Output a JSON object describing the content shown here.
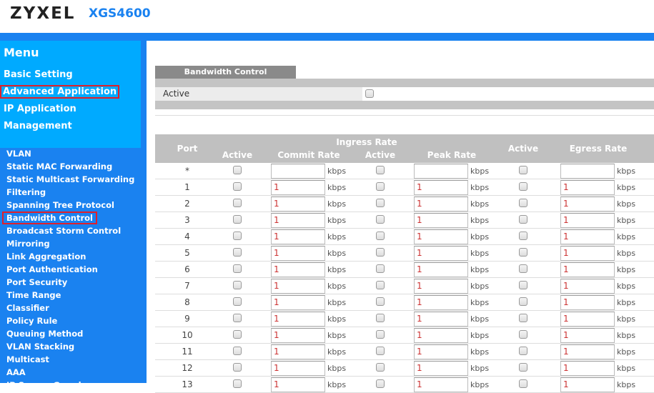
{
  "header": {
    "brand": "ZYXEL",
    "model": "XGS4600"
  },
  "menu": {
    "title": "Menu",
    "top_items": [
      {
        "label": "Basic Setting"
      },
      {
        "label": "Advanced Application",
        "selected": true
      },
      {
        "label": "IP Application"
      },
      {
        "label": "Management"
      }
    ],
    "sub_items": [
      {
        "label": "VLAN"
      },
      {
        "label": "Static MAC Forwarding"
      },
      {
        "label": "Static Multicast Forwarding"
      },
      {
        "label": "Filtering"
      },
      {
        "label": "Spanning Tree Protocol"
      },
      {
        "label": "Bandwidth Control",
        "selected": true
      },
      {
        "label": "Broadcast Storm Control"
      },
      {
        "label": "Mirroring"
      },
      {
        "label": "Link Aggregation"
      },
      {
        "label": "Port Authentication"
      },
      {
        "label": "Port Security"
      },
      {
        "label": "Time Range"
      },
      {
        "label": "Classifier"
      },
      {
        "label": "Policy Rule"
      },
      {
        "label": "Queuing Method"
      },
      {
        "label": "VLAN Stacking"
      },
      {
        "label": "Multicast"
      },
      {
        "label": "AAA"
      },
      {
        "label": "IP Source Guard"
      }
    ]
  },
  "main": {
    "tab": "Bandwidth Control",
    "active_label": "Active",
    "active_checked": false,
    "table": {
      "headers": {
        "port": "Port",
        "ingress": "Ingress Rate",
        "active1": "Active",
        "commit": "Commit Rate",
        "active2": "Active",
        "peak": "Peak Rate",
        "active3": "Active",
        "egress": "Egress Rate"
      },
      "unit": "kbps",
      "rows": [
        {
          "port": "*",
          "commit": "",
          "peak": "",
          "egress": ""
        },
        {
          "port": "1",
          "commit": "1",
          "peak": "1",
          "egress": "1"
        },
        {
          "port": "2",
          "commit": "1",
          "peak": "1",
          "egress": "1"
        },
        {
          "port": "3",
          "commit": "1",
          "peak": "1",
          "egress": "1"
        },
        {
          "port": "4",
          "commit": "1",
          "peak": "1",
          "egress": "1"
        },
        {
          "port": "5",
          "commit": "1",
          "peak": "1",
          "egress": "1"
        },
        {
          "port": "6",
          "commit": "1",
          "peak": "1",
          "egress": "1"
        },
        {
          "port": "7",
          "commit": "1",
          "peak": "1",
          "egress": "1"
        },
        {
          "port": "8",
          "commit": "1",
          "peak": "1",
          "egress": "1"
        },
        {
          "port": "9",
          "commit": "1",
          "peak": "1",
          "egress": "1"
        },
        {
          "port": "10",
          "commit": "1",
          "peak": "1",
          "egress": "1"
        },
        {
          "port": "11",
          "commit": "1",
          "peak": "1",
          "egress": "1"
        },
        {
          "port": "12",
          "commit": "1",
          "peak": "1",
          "egress": "1"
        },
        {
          "port": "13",
          "commit": "1",
          "peak": "1",
          "egress": "1"
        }
      ]
    }
  },
  "colors": {
    "brand_blue": "#1a82f0",
    "menu_light": "#00aaff",
    "highlight": "#e0202a"
  }
}
